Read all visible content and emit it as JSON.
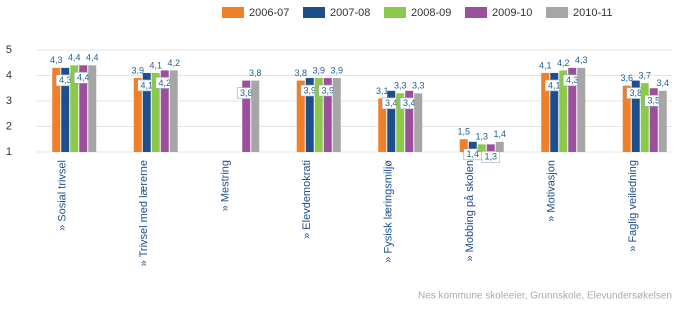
{
  "chart_data": {
    "type": "bar",
    "categories": [
      "» Sosial trivsel",
      "» Trivsel med lærerne",
      "» Mestring",
      "» Elevdemokrati",
      "» Fysisk læringsmiljø",
      "» Mobbing på skolen",
      "» Motivasjon",
      "» Faglig veiledning"
    ],
    "series": [
      {
        "name": "2006-07",
        "color": "#f07f2a",
        "values": [
          4.3,
          3.9,
          null,
          3.8,
          3.1,
          1.5,
          4.1,
          3.6
        ],
        "value_labels": [
          "4,3",
          "3,9",
          null,
          "3,8",
          "3,1",
          "1,5",
          "4,1",
          "3,6"
        ]
      },
      {
        "name": "2007-08",
        "color": "#1f4e8c",
        "values": [
          4.3,
          4.1,
          null,
          3.9,
          3.4,
          1.4,
          4.1,
          3.8
        ],
        "value_labels": [
          "4,3",
          "4,1",
          null,
          "3,9",
          "3,4",
          "1,4",
          "4,1",
          "3,8"
        ]
      },
      {
        "name": "2008-09",
        "color": "#8cc84b",
        "values": [
          4.4,
          4.1,
          null,
          3.9,
          3.3,
          1.3,
          4.2,
          3.7
        ],
        "value_labels": [
          "4,4",
          "4,1",
          null,
          "3,9",
          "3,3",
          "1,3",
          "4,2",
          "3,7"
        ]
      },
      {
        "name": "2009-10",
        "color": "#9c4f9c",
        "values": [
          4.4,
          4.2,
          3.8,
          3.9,
          3.4,
          1.3,
          4.3,
          3.5
        ],
        "value_labels": [
          "4,4",
          "4,2",
          "3,8",
          "3,9",
          "3,4",
          "1,3",
          "4,3",
          "3,5"
        ]
      },
      {
        "name": "2010-11",
        "color": "#a6a6a6",
        "values": [
          4.4,
          4.2,
          3.8,
          3.9,
          3.3,
          1.4,
          4.3,
          3.4
        ],
        "value_labels": [
          "4,4",
          "4,2",
          "3,8",
          "3,9",
          "3,3",
          "1,4",
          "4,3",
          "3,4"
        ]
      }
    ],
    "ylim": [
      1,
      5
    ],
    "yticks": [
      1,
      2,
      3,
      4,
      5
    ],
    "grid": true,
    "source": "Nes kommune skoleeier, Grunnskole, Elevundersøkelsen"
  }
}
